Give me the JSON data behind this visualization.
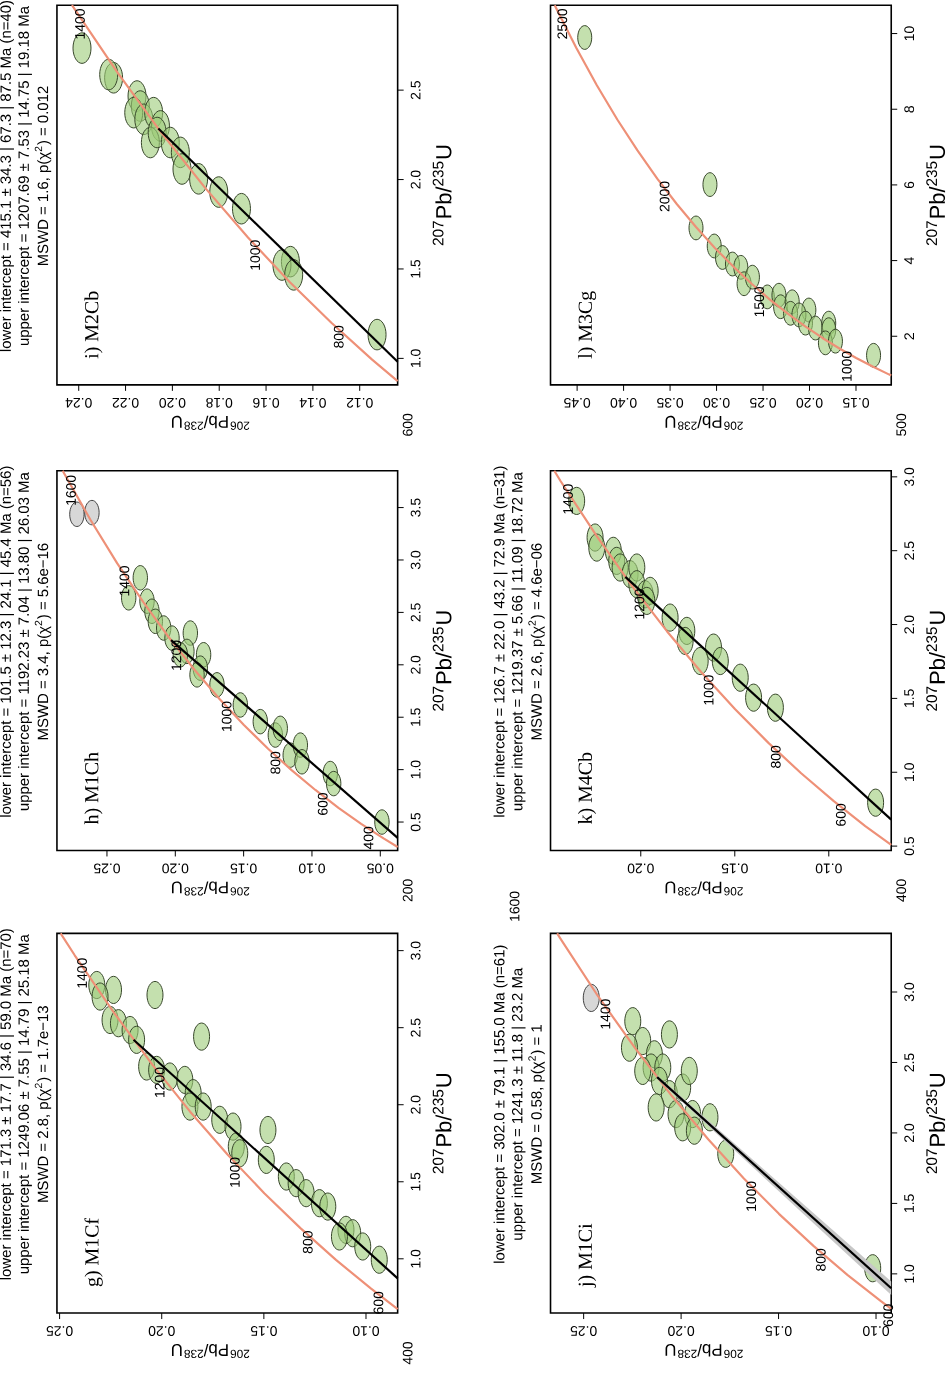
{
  "chart_data": [
    {
      "type": "scatter",
      "title": "g) M1Cf",
      "subtitle": "lower intercept = 171.3 ± 17.7 | 34.6 | 59.0 Ma (n=70)",
      "xlabel": "$^{206}$Pb/$^{238}$U",
      "ylabel": "$^{207}$Pb/$^{235}$U",
      "xlim": [
        0.2513,
        0.0845
      ],
      "ylim": [
        0.648,
        3.112
      ],
      "xticks": [
        {
          "value": 0.1,
          "label": "0.10"
        },
        {
          "value": 0.15,
          "label": "0.15"
        },
        {
          "value": 0.2,
          "label": "0.20"
        },
        {
          "value": 0.25,
          "label": "0.25"
        }
      ],
      "yticks": [
        {
          "value": 1.0,
          "label": "1.0"
        },
        {
          "value": 1.5,
          "label": "1.5"
        },
        {
          "value": 2.0,
          "label": "2.0"
        },
        {
          "value": 2.5,
          "label": "2.5"
        },
        {
          "value": 3.0,
          "label": "3.0"
        }
      ],
      "annotations": [
        "upper intercept = 1249.06 ± 7.55 | 14.79 | 25.18 Ma",
        "MSWD = 2.8, p(χ$^{2}$) = 1.7e−13",
        "400",
        {
          "text": "600",
          "x": 0.0975,
          "y": 0.806
        },
        {
          "text": "800",
          "x": 0.1321,
          "y": 1.199
        },
        {
          "text": "1000",
          "x": 0.1678,
          "y": 1.677
        },
        {
          "text": "1200",
          "x": 0.2046,
          "y": 2.26
        },
        {
          "text": "1400",
          "x": 0.2426,
          "y": 2.97
        }
      ],
      "series": [
        {
          "type": "line",
          "color": "#ee9077",
          "x": [
            0.0845,
            0.0975,
            0.1147,
            0.1321,
            0.1498,
            0.1678,
            0.1861,
            0.2046,
            0.2234,
            0.2426,
            0.2495
          ],
          "values": [
            0.674,
            0.806,
            0.993,
            1.199,
            1.426,
            1.677,
            1.955,
            2.26,
            2.598,
            2.97,
            3.112
          ]
        },
        {
          "type": "line",
          "color": "#000000",
          "x": [
            0.0845,
            0.2138
          ],
          "values": [
            0.873,
            2.422
          ]
        },
        {
          "color": "#9ccc78",
          "x": [
            0.2318,
            0.2236,
            0.2033,
            0.2302,
            0.2253,
            0.2212,
            0.2155,
            0.2123,
            0.1805,
            0.2074,
            0.2025,
            0.196,
            0.1887,
            0.1846,
            0.1862,
            0.1797,
            0.1716,
            0.1651,
            0.148,
            0.1635,
            0.1618,
            0.1488,
            0.139,
            0.1342,
            0.1293,
            0.1228,
            0.1187,
            0.1098,
            0.1065,
            0.113,
            0.1016,
            0.0935
          ],
          "values": [
            2.777,
            2.745,
            2.712,
            2.702,
            2.55,
            2.529,
            2.485,
            2.421,
            2.442,
            2.248,
            2.226,
            2.183,
            2.161,
            2.075,
            1.988,
            1.988,
            1.902,
            1.858,
            1.836,
            1.729,
            1.685,
            1.642,
            1.534,
            1.491,
            1.426,
            1.361,
            1.339,
            1.188,
            1.166,
            1.145,
            1.08,
            0.994
          ]
        }
      ]
    },
    {
      "type": "scatter",
      "title": "h) M1Ch",
      "subtitle": "lower intercept = 101.5 ± 12.3 | 24.1 | 45.4 Ma (n=56)",
      "xlabel": "$^{206}$Pb/$^{238}$U",
      "ylabel": "$^{207}$Pb/$^{235}$U",
      "xlim": [
        0.2866,
        0.0373
      ],
      "ylim": [
        0.229,
        3.851
      ],
      "xticks": [
        {
          "value": 0.05,
          "label": "0.05"
        },
        {
          "value": 0.1,
          "label": "0.10"
        },
        {
          "value": 0.15,
          "label": "0.15"
        },
        {
          "value": 0.2,
          "label": "0.20"
        },
        {
          "value": 0.25,
          "label": "0.25"
        }
      ],
      "yticks": [
        {
          "value": 0.5,
          "label": "0.5"
        },
        {
          "value": 1.0,
          "label": "1.0"
        },
        {
          "value": 1.5,
          "label": "1.5"
        },
        {
          "value": 2.0,
          "label": "2.0"
        },
        {
          "value": 2.5,
          "label": "2.5"
        },
        {
          "value": 3.0,
          "label": "3.0"
        },
        {
          "value": 3.5,
          "label": "3.5"
        }
      ],
      "annotations": [
        "upper intercept = 1192.23 ± 7.04 | 13.80 | 26.03 Ma",
        "MSWD = 3.4, p(χ$^{2}$) = 5.6e−16",
        "200",
        {
          "text": "400",
          "x": 0.064,
          "y": 0.483
        },
        {
          "text": "600",
          "x": 0.0975,
          "y": 0.806
        },
        {
          "text": "800",
          "x": 0.1321,
          "y": 1.199
        },
        {
          "text": "1000",
          "x": 0.1678,
          "y": 1.677
        },
        {
          "text": "1200",
          "x": 0.2046,
          "y": 2.26
        },
        {
          "text": "1400",
          "x": 0.2426,
          "y": 2.97
        },
        {
          "text": "1600",
          "x": 0.2817,
          "y": 3.835
        }
      ],
      "series": [
        {
          "type": "line",
          "color": "#ee9077",
          "x": [
            0.0373,
            0.0476,
            0.064,
            0.0806,
            0.0975,
            0.1147,
            0.1321,
            0.1498,
            0.1678,
            0.1861,
            0.2046,
            0.2234,
            0.2426,
            0.262,
            0.2817,
            0.2824
          ],
          "values": [
            0.262,
            0.344,
            0.483,
            0.636,
            0.806,
            0.993,
            1.199,
            1.426,
            1.677,
            1.955,
            2.26,
            2.598,
            2.97,
            3.381,
            3.835,
            3.851
          ]
        },
        {
          "type": "line",
          "color": "#000000",
          "x": [
            0.0373,
            0.2031
          ],
          "values": [
            0.349,
            2.235
          ]
        },
        {
          "color": "#9ccc78",
          "x": [
            0.2256,
            0.2341,
            0.2207,
            0.2171,
            0.2146,
            0.2085,
            0.2024,
            0.189,
            0.1915,
            0.1963,
            0.1793,
            0.1817,
            0.1841,
            0.1695,
            0.1524,
            0.1378,
            0.1268,
            0.1232,
            0.1159,
            0.1085,
            0.1073,
            0.0866,
            0.0841,
            0.0488
          ],
          "values": [
            2.83,
            2.639,
            2.607,
            2.511,
            2.415,
            2.351,
            2.255,
            2.303,
            2.128,
            2.096,
            2.096,
            1.968,
            1.904,
            1.809,
            1.617,
            1.458,
            1.33,
            1.394,
            1.138,
            1.234,
            1.075,
            0.963,
            0.867,
            0.5
          ]
        },
        {
          "color": "#bdbdbd",
          "x": [
            0.272,
            0.261
          ],
          "values": [
            3.436,
            3.452
          ]
        }
      ]
    },
    {
      "type": "scatter",
      "title": "i) M2Cb",
      "subtitle": "lower intercept = 415.1 ± 34.3 | 67.3 | 87.5 Ma (n=40)",
      "xlabel": "$^{206}$Pb/$^{238}$U",
      "ylabel": "$^{207}$Pb/$^{235}$U",
      "xlim": [
        0.2493,
        0.1038
      ],
      "ylim": [
        0.852,
        2.975
      ],
      "xticks": [
        {
          "value": 0.12,
          "label": "0.12"
        },
        {
          "value": 0.14,
          "label": "0.14"
        },
        {
          "value": 0.16,
          "label": "0.16"
        },
        {
          "value": 0.18,
          "label": "0.18"
        },
        {
          "value": 0.2,
          "label": "0.20"
        },
        {
          "value": 0.22,
          "label": "0.22"
        },
        {
          "value": 0.24,
          "label": "0.24"
        }
      ],
      "yticks": [
        {
          "value": 1.0,
          "label": "1.0"
        },
        {
          "value": 1.5,
          "label": "1.5"
        },
        {
          "value": 2.0,
          "label": "2.0"
        },
        {
          "value": 2.5,
          "label": "2.5"
        }
      ],
      "annotations": [
        "upper intercept = 1207.69 ± 7.53 | 14.75 | 19.18 Ma",
        "MSWD = 1.6, p(χ$^{2}$) = 0.012",
        "600",
        {
          "text": "800",
          "x": 0.1321,
          "y": 1.199
        },
        {
          "text": "1000",
          "x": 0.1678,
          "y": 1.677
        },
        {
          "text": "1400",
          "x": 0.2426,
          "y": 2.97
        }
      ],
      "series": [
        {
          "type": "line",
          "color": "#ee9077",
          "x": [
            0.1038,
            0.1147,
            0.1321,
            0.1498,
            0.1678,
            0.1861,
            0.2046,
            0.2234,
            0.2426,
            0.2429
          ],
          "values": [
            0.873,
            0.993,
            1.199,
            1.426,
            1.677,
            1.955,
            2.26,
            2.598,
            2.97,
            2.975
          ]
        },
        {
          "type": "line",
          "color": "#000000",
          "x": [
            0.1038,
            0.206
          ],
          "values": [
            0.981,
            2.285
          ]
        },
        {
          "color": "#9ccc78",
          "x": [
            0.2386,
            0.2251,
            0.2272,
            0.2151,
            0.2137,
            0.2165,
            0.2122,
            0.208,
            0.2051,
            0.2094,
            0.2065,
            0.2009,
            0.1966,
            0.1959,
            0.1888,
            0.1802,
            0.1705,
            0.1496,
            0.1532,
            0.1482,
            0.1126
          ],
          "values": [
            2.735,
            2.569,
            2.587,
            2.467,
            2.411,
            2.374,
            2.337,
            2.374,
            2.3,
            2.207,
            2.263,
            2.207,
            2.152,
            2.059,
            2.004,
            1.93,
            1.837,
            1.541,
            1.522,
            1.467,
            1.133
          ]
        }
      ]
    },
    {
      "type": "scatter",
      "title": "j) M1Ci",
      "subtitle": "lower intercept = 302.0 ± 79.1 | 155.0 Ma (n=61)",
      "xlabel": "$^{206}$Pb/$^{238}$U",
      "ylabel": "$^{207}$Pb/$^{235}$U",
      "xlim": [
        0.267,
        0.0922
      ],
      "ylim": [
        0.722,
        3.416
      ],
      "xticks": [
        {
          "value": 0.1,
          "label": "0.10"
        },
        {
          "value": 0.15,
          "label": "0.15"
        },
        {
          "value": 0.2,
          "label": "0.20"
        },
        {
          "value": 0.25,
          "label": "0.25"
        }
      ],
      "yticks": [
        {
          "value": 1.0,
          "label": "1.0"
        },
        {
          "value": 1.5,
          "label": "1.5"
        },
        {
          "value": 2.0,
          "label": "2.0"
        },
        {
          "value": 2.5,
          "label": "2.5"
        },
        {
          "value": 3.0,
          "label": "3.0"
        }
      ],
      "annotations": [
        "upper intercept = 1241.3 ± 11.8 | 23.2 Ma",
        "MSWD = 0.58, p(χ$^{2}$) = 1",
        {
          "text": "600",
          "x": 0.0975,
          "y": 0.806
        },
        {
          "text": "800",
          "x": 0.1321,
          "y": 1.199
        },
        {
          "text": "1000",
          "x": 0.1678,
          "y": 1.677
        },
        {
          "text": "1400",
          "x": 0.2426,
          "y": 2.97
        }
      ],
      "series": [
        {
          "type": "line",
          "color": "#ee9077",
          "x": [
            0.0922,
            0.0975,
            0.1147,
            0.1321,
            0.1498,
            0.1678,
            0.1861,
            0.2046,
            0.2234,
            0.2426,
            0.262,
            0.2636
          ],
          "values": [
            0.751,
            0.806,
            0.993,
            1.199,
            1.426,
            1.677,
            1.955,
            2.26,
            2.598,
            2.97,
            3.381,
            3.416
          ]
        },
        {
          "type": "line",
          "color": "#000000",
          "x": [
            0.0922,
            0.2123
          ],
          "values": [
            0.898,
            2.396
          ],
          "lower": [
            0.85,
            2.384
          ],
          "upper": [
            0.946,
            2.408
          ]
        },
        {
          "color": "#9ccc78",
          "x": [
            0.2248,
            0.2197,
            0.2265,
            0.2137,
            0.2154,
            0.2094,
            0.206,
            0.2197,
            0.2111,
            0.206,
            0.1992,
            0.1958,
            0.2128,
            0.2026,
            0.1941,
            0.1992,
            0.1932,
            0.1852,
            0.1771,
            0.1017
          ],
          "values": [
            2.793,
            2.652,
            2.605,
            2.558,
            2.464,
            2.464,
            2.699,
            2.44,
            2.369,
            2.275,
            2.322,
            2.44,
            2.181,
            2.134,
            2.134,
            2.04,
            2.016,
            2.111,
            1.852,
            1.04
          ]
        },
        {
          "color": "#bdbdbd",
          "x": [
            0.2461
          ],
          "values": [
            2.958
          ]
        }
      ]
    },
    {
      "type": "scatter",
      "title": "k) M4Cb",
      "subtitle": "lower intercept = 126.7 ± 22.0 | 43.2 | 72.9 Ma (n=31)",
      "xlabel": "$^{206}$Pb/$^{238}$U",
      "ylabel": "$^{207}$Pb/$^{235}$U",
      "xlim": [
        0.248,
        0.0668
      ],
      "ylim": [
        0.4706,
        3.041
      ],
      "xticks": [
        {
          "value": 0.1,
          "label": "0.10"
        },
        {
          "value": 0.15,
          "label": "0.15"
        },
        {
          "value": 0.2,
          "label": "0.20"
        }
      ],
      "yticks": [
        {
          "value": 0.5,
          "label": "0.5"
        },
        {
          "value": 1.0,
          "label": "1.0"
        },
        {
          "value": 1.5,
          "label": "1.5"
        },
        {
          "value": 2.0,
          "label": "2.0"
        },
        {
          "value": 2.5,
          "label": "2.5"
        },
        {
          "value": 3.0,
          "label": "3.0"
        }
      ],
      "annotations": [
        "upper intercept = 1219.37 ± 5.66 | 11.09 | 18.72 Ma",
        "MSWD = 2.6, p(χ$^{2}$) = 4.6e−06",
        "400",
        "1600",
        {
          "text": "600",
          "x": 0.0975,
          "y": 0.806
        },
        {
          "text": "800",
          "x": 0.1321,
          "y": 1.199
        },
        {
          "text": "1000",
          "x": 0.1678,
          "y": 1.677
        },
        {
          "text": "1200",
          "x": 0.2046,
          "y": 2.26
        },
        {
          "text": "1400",
          "x": 0.2426,
          "y": 2.97
        }
      ],
      "series": [
        {
          "type": "line",
          "color": "#ee9077",
          "x": [
            0.0668,
            0.0806,
            0.0975,
            0.1147,
            0.1321,
            0.1498,
            0.1678,
            0.1861,
            0.2046,
            0.2234,
            0.2426,
            0.246
          ],
          "values": [
            0.508,
            0.636,
            0.806,
            0.993,
            1.199,
            1.426,
            1.677,
            1.955,
            2.26,
            2.598,
            2.97,
            3.041
          ]
        },
        {
          "type": "line",
          "color": "#000000",
          "x": [
            0.0668,
            0.2082
          ],
          "values": [
            0.679,
            2.323
          ]
        },
        {
          "color": "#9ccc78",
          "x": [
            0.2341,
            0.2243,
            0.2234,
            0.2146,
            0.2128,
            0.211,
            0.2057,
            0.2021,
            0.2021,
            0.1977,
            0.195,
            0.1968,
            0.1844,
            0.1755,
            0.1764,
            0.1613,
            0.1577,
            0.1684,
            0.1471,
            0.14,
            0.1284,
            0.0751
          ],
          "values": [
            2.837,
            2.589,
            2.521,
            2.499,
            2.431,
            2.386,
            2.341,
            2.386,
            2.273,
            2.205,
            2.228,
            2.16,
            2.047,
            1.957,
            1.889,
            1.844,
            1.753,
            1.753,
            1.64,
            1.505,
            1.437,
            0.794
          ]
        }
      ]
    },
    {
      "type": "scatter",
      "title": "l) M3Cg",
      "xlabel": "$^{206}$Pb/$^{238}$U",
      "ylabel": "$^{207}$Pb/$^{235}$U",
      "xlim": [
        0.4786,
        0.1121
      ],
      "ylim": [
        0.716,
        10.75
      ],
      "xticks": [
        {
          "value": 0.15,
          "label": "0.15"
        },
        {
          "value": 0.2,
          "label": "0.20"
        },
        {
          "value": 0.25,
          "label": "0.25"
        },
        {
          "value": 0.3,
          "label": "0.30"
        },
        {
          "value": 0.35,
          "label": "0.35"
        },
        {
          "value": 0.4,
          "label": "0.40"
        },
        {
          "value": 0.45,
          "label": "0.45"
        }
      ],
      "yticks": [
        2,
        4,
        6,
        8,
        10
      ],
      "annotations": [
        "500",
        {
          "text": "1000",
          "x": 0.1678,
          "y": 1.677
        },
        {
          "text": "1500",
          "x": 0.262,
          "y": 3.381
        },
        {
          "text": "2000",
          "x": 0.3638,
          "y": 6.168
        },
        {
          "text": "2500",
          "x": 0.4738,
          "y": 10.73
        }
      ],
      "series": [
        {
          "type": "line",
          "color": "#ee9077",
          "x": [
            0.1121,
            0.1147,
            0.1321,
            0.1498,
            0.1678,
            0.1861,
            0.2046,
            0.2234,
            0.2426,
            0.262,
            0.2817,
            0.3018,
            0.3221,
            0.3428,
            0.3638,
            0.3851,
            0.4068,
            0.4288,
            0.4511,
            0.4741
          ],
          "values": [
            0.964,
            0.993,
            1.199,
            1.426,
            1.677,
            1.955,
            2.26,
            2.598,
            2.97,
            3.381,
            3.835,
            4.335,
            4.887,
            5.496,
            6.168,
            6.911,
            7.729,
            8.633,
            9.629,
            10.75
          ]
        },
        {
          "color": "#9ccc78",
          "x": [
            0.4418,
            0.3071,
            0.3221,
            0.3025,
            0.2936,
            0.2829,
            0.2739,
            0.2704,
            0.2614,
            0.2454,
            0.2329,
            0.2311,
            0.2186,
            0.2007,
            0.2204,
            0.2114,
            0.2043,
            0.1936,
            0.1793,
            0.1793,
            0.1829,
            0.1721,
            0.1311
          ],
          "values": [
            9.896,
            6.009,
            4.863,
            4.386,
            4.082,
            3.909,
            3.822,
            3.388,
            3.562,
            3.041,
            3.085,
            2.781,
            2.911,
            2.694,
            2.607,
            2.564,
            2.347,
            2.217,
            2.347,
            2.174,
            1.826,
            1.87,
            1.497
          ]
        }
      ]
    }
  ]
}
